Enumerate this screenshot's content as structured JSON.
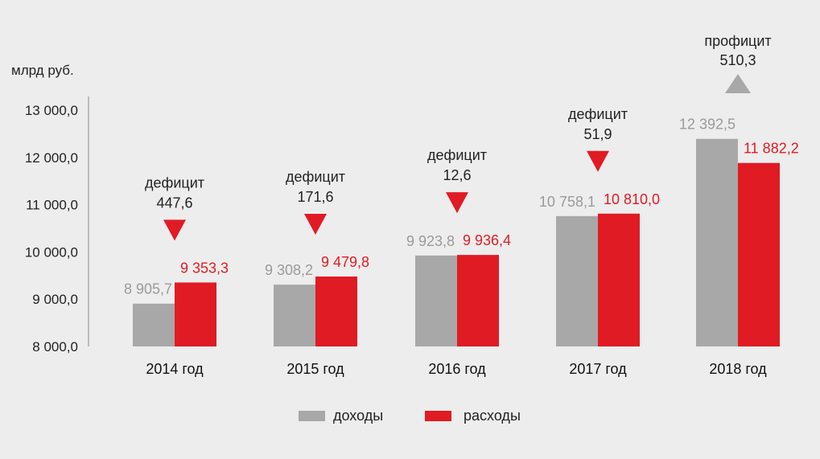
{
  "chart_data": {
    "type": "bar",
    "unit_label": "млрд руб.",
    "y_ticks": [
      "13 000,0",
      "12 000,0",
      "11 000,0",
      "10 000,0",
      "9 000,0",
      "8 000,0"
    ],
    "ylim": [
      8000,
      13000
    ],
    "categories": [
      "2014 год",
      "2015 год",
      "2016 год",
      "2017 год",
      "2018 год"
    ],
    "series": [
      {
        "name": "доходы",
        "color": "#a8a8a8",
        "label_color": "#9a9a9a",
        "values": [
          8905.7,
          9308.2,
          9923.8,
          10758.1,
          12392.5
        ],
        "labels": [
          "8 905,7",
          "9 308,2",
          "9 923,8",
          "10 758,1",
          "12 392,5"
        ]
      },
      {
        "name": "расходы",
        "color": "#e01b24",
        "label_color": "#e01b24",
        "values": [
          9353.3,
          9479.8,
          9936.4,
          10810.0,
          11882.2
        ],
        "labels": [
          "9 353,3",
          "9 479,8",
          "9 936,4",
          "10 810,0",
          "11 882,2"
        ]
      }
    ],
    "balance": [
      {
        "type": "дефицит",
        "value": "447,6",
        "direction": "down",
        "color": "#e01b24"
      },
      {
        "type": "дефицит",
        "value": "171,6",
        "direction": "down",
        "color": "#e01b24"
      },
      {
        "type": "дефицит",
        "value": "12,6",
        "direction": "down",
        "color": "#e01b24"
      },
      {
        "type": "дефицит",
        "value": "51,9",
        "direction": "down",
        "color": "#e01b24"
      },
      {
        "type": "профицит",
        "value": "510,3",
        "direction": "up",
        "color": "#a8a8a8"
      }
    ],
    "legend": [
      "доходы",
      "расходы"
    ]
  }
}
